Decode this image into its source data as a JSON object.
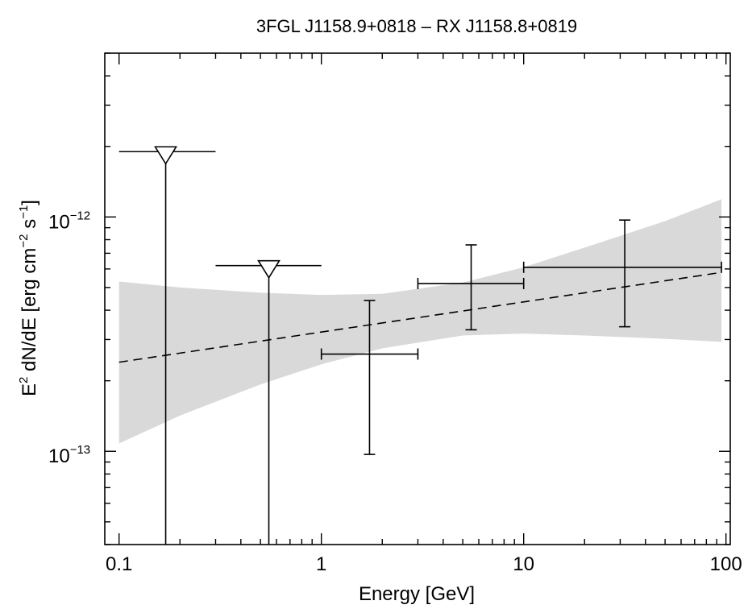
{
  "chart_data": {
    "type": "scatter",
    "title": "3FGL J1158.9+0818 – RX J1158.8+0819",
    "xlabel": "Energy [GeV]",
    "ylabel": {
      "base": "E",
      "base_sup": "2",
      "middle": " dN/dE [erg cm",
      "cm_sup": "−2",
      "s_part": " s",
      "s_sup": "−1",
      "end": "]"
    },
    "x_scale": "log",
    "y_scale": "log",
    "xlim": [
      0.085,
      105
    ],
    "ylim": [
      4e-14,
      5e-12
    ],
    "x_tick_labels": [
      {
        "value": 0.1,
        "label": "0.1"
      },
      {
        "value": 1,
        "label": "1"
      },
      {
        "value": 10,
        "label": "10"
      },
      {
        "value": 100,
        "label": "100"
      }
    ],
    "y_tick_labels": [
      {
        "value": 1e-13,
        "base": "10",
        "exp": "−13"
      },
      {
        "value": 1e-12,
        "base": "10",
        "exp": "−12"
      }
    ],
    "band": {
      "color": "#d9d9d9",
      "x": [
        0.1,
        0.2,
        0.5,
        1.0,
        2.0,
        5.0,
        10.0,
        20.0,
        50.0,
        95.0
      ],
      "upper": [
        5.3e-13,
        5e-13,
        4.75e-13,
        4.65e-13,
        4.7e-13,
        5.25e-13,
        6.1e-13,
        7.4e-13,
        9.6e-13,
        1.19e-12
      ],
      "lower": [
        1.08e-13,
        1.42e-13,
        1.93e-13,
        2.35e-13,
        2.75e-13,
        3.12e-13,
        3.18e-13,
        3.12e-13,
        3.02e-13,
        2.93e-13
      ]
    },
    "model_line": {
      "style": "dashed",
      "x": [
        0.1,
        95.0
      ],
      "y": [
        2.4e-13,
        5.8e-13
      ]
    },
    "points": [
      {
        "x": 1.73,
        "y": 2.6e-13,
        "xmin": 1.0,
        "xmax": 3.0,
        "ymin": 9.7e-14,
        "ymax": 4.4e-13
      },
      {
        "x": 5.5,
        "y": 5.2e-13,
        "xmin": 3.0,
        "xmax": 10.0,
        "ymin": 3.3e-13,
        "ymax": 7.6e-13
      },
      {
        "x": 31.6,
        "y": 6.1e-13,
        "xmin": 10.0,
        "xmax": 95.0,
        "ymin": 3.4e-13,
        "ymax": 9.7e-13
      }
    ],
    "upper_limits": [
      {
        "x": 0.17,
        "y": 1.9e-12,
        "xmin": 0.1,
        "xmax": 0.3
      },
      {
        "x": 0.55,
        "y": 6.2e-13,
        "xmin": 0.3,
        "xmax": 1.0
      }
    ],
    "grid": false,
    "legend": "none"
  }
}
